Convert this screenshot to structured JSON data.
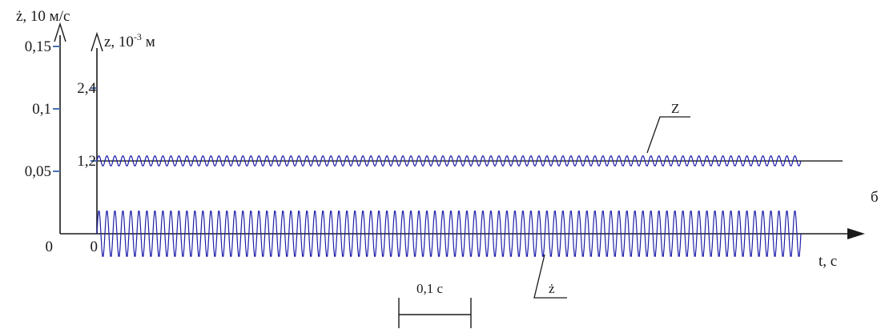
{
  "chart_data": {
    "type": "line",
    "panel_label": "б",
    "left_axis": {
      "title": "ż, 10 м/с",
      "ticks": [
        {
          "value": 0,
          "label": "0"
        },
        {
          "value": 0.05,
          "label": "0,05"
        },
        {
          "value": 0.1,
          "label": "0,1"
        },
        {
          "value": 0.15,
          "label": "0,15"
        }
      ]
    },
    "inner_axis": {
      "title_base": "z, 10",
      "title_exp": "-3",
      "title_unit": " м",
      "ticks": [
        {
          "value": 0,
          "label": "0"
        },
        {
          "value": 1.2,
          "label": "1,2"
        },
        {
          "value": 2.4,
          "label": "2,4"
        }
      ]
    },
    "x_axis": {
      "label": "t, c"
    },
    "series": [
      {
        "name": "z",
        "axis": "inner",
        "baseline": 1.2,
        "amplitude": 0.085,
        "cycles": 88,
        "t_range": [
          0,
          1.0
        ],
        "color": "#1f1fa8"
      },
      {
        "name": "ż",
        "axis": "left",
        "baseline": 0,
        "amplitude": 0.019,
        "cycles": 88,
        "t_range": [
          0,
          1.0
        ],
        "color": "#1f1fa8"
      }
    ],
    "scale_bar": {
      "label": "0,1 с",
      "duration": 0.1
    }
  }
}
